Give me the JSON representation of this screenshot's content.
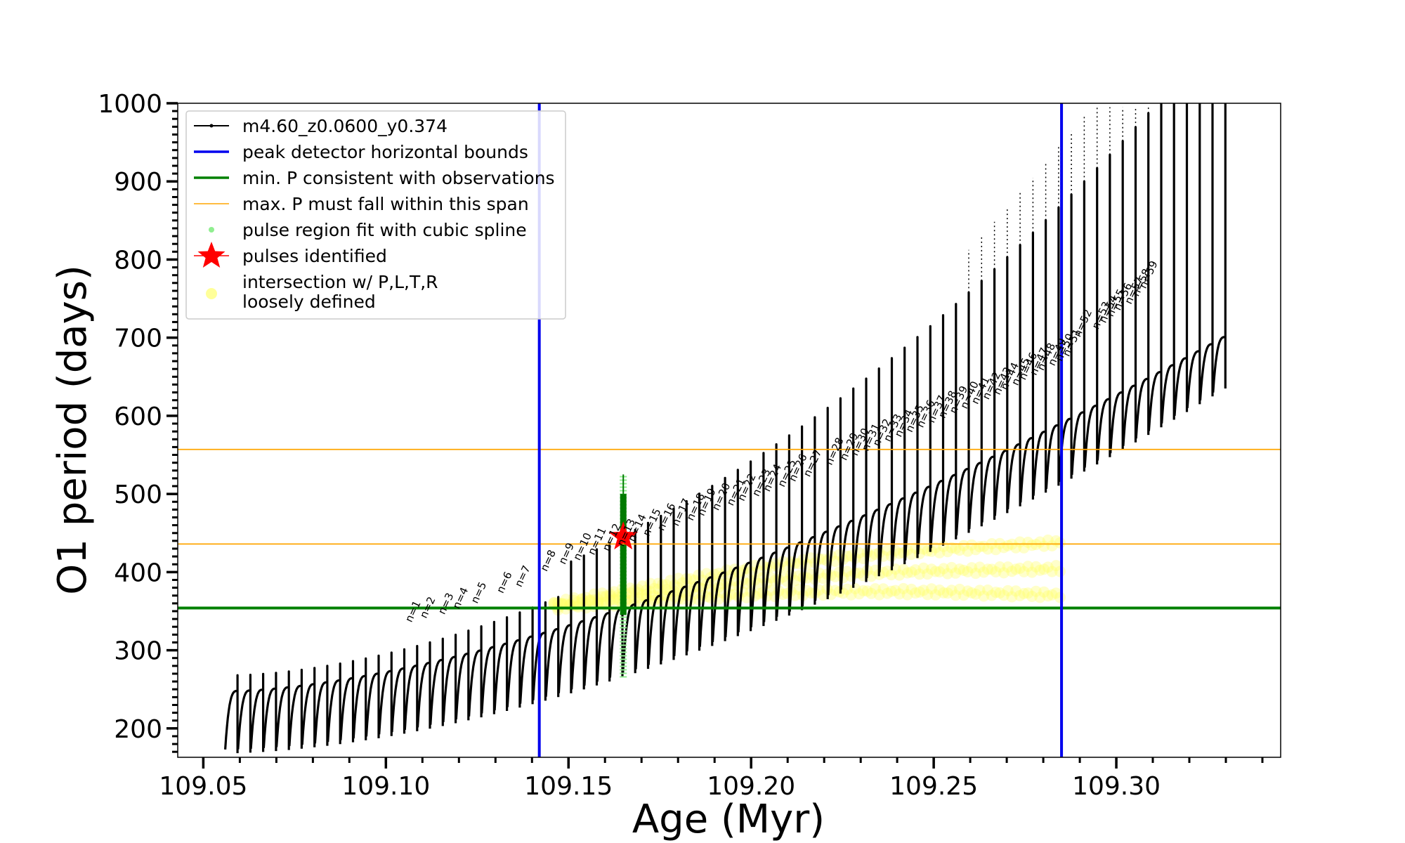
{
  "chart_data": {
    "type": "scatter",
    "title": "",
    "xlabel": "Age (Myr)",
    "ylabel": "O1 period (days)",
    "xlim": [
      109.043,
      109.345
    ],
    "ylim": [
      163,
      1000
    ],
    "x_ticks": [
      "109.05",
      "109.10",
      "109.15",
      "109.20",
      "109.25",
      "109.30"
    ],
    "x_tick_values": [
      109.05,
      109.1,
      109.15,
      109.2,
      109.25,
      109.3
    ],
    "y_ticks": [
      "200",
      "300",
      "400",
      "500",
      "600",
      "700",
      "800",
      "900",
      "1000"
    ],
    "y_tick_values": [
      200,
      300,
      400,
      500,
      600,
      700,
      800,
      900,
      1000
    ],
    "grid": false,
    "legend_position": "upper-left",
    "legend": [
      {
        "label": "m4.60_z0.0600_y0.374",
        "kind": "line-marker",
        "color": "#000000"
      },
      {
        "label": "peak detector horizontal bounds",
        "kind": "line",
        "color": "#0000ee"
      },
      {
        "label": "min. P consistent with observations",
        "kind": "line",
        "color": "#008000"
      },
      {
        "label": "max. P must fall within this span",
        "kind": "thin-line",
        "color": "#ffa500"
      },
      {
        "label": "pulse region fit with cubic spline",
        "kind": "dot",
        "color": "#90ee90"
      },
      {
        "label": "pulses identified",
        "kind": "star",
        "color": "#ff0000"
      },
      {
        "label": "intersection w/ P,L,T,R",
        "label2": "loosely defined",
        "kind": "circle",
        "color": "#ffff99"
      }
    ],
    "series": [
      {
        "name": "m4.60_z0.0600_y0.374",
        "description_values": "period vs age; sawtooth thermal pulse cycles",
        "x_start": 109.056,
        "x_end": 109.33,
        "pulse_count": 78,
        "lower_envelope_start": 173,
        "lower_envelope_end": 640,
        "upper_envelope_start": 248,
        "upper_envelope_end": 710
      }
    ],
    "vertical_lines": [
      {
        "x": 109.142,
        "color": "#0000ee",
        "label": "peak detector horizontal bounds"
      },
      {
        "x": 109.285,
        "color": "#0000ee",
        "label": "peak detector horizontal bounds"
      }
    ],
    "horizontal_lines": [
      {
        "y": 354,
        "color": "#008000",
        "label": "min. P consistent with observations"
      },
      {
        "y": 436,
        "color": "#ffa500",
        "label": "max. P must fall within this span"
      },
      {
        "y": 557,
        "color": "#ffa500",
        "label": "max. P must fall within this span"
      }
    ],
    "pulses_identified": [
      {
        "x": 109.165,
        "y": 445
      }
    ],
    "spline_region": {
      "x": 109.165,
      "y_min": 265,
      "y_max": 525
    },
    "pulse_labels": [
      {
        "text": "n=1",
        "x": 109.107,
        "y": 335
      },
      {
        "text": "n=2",
        "x": 109.111,
        "y": 340
      },
      {
        "text": "n=3",
        "x": 109.116,
        "y": 345
      },
      {
        "text": "n=4",
        "x": 109.12,
        "y": 352
      },
      {
        "text": "n=5",
        "x": 109.125,
        "y": 359
      },
      {
        "text": "n=6",
        "x": 109.132,
        "y": 372
      },
      {
        "text": "n=7",
        "x": 109.137,
        "y": 380
      },
      {
        "text": "n=8",
        "x": 109.144,
        "y": 400
      },
      {
        "text": "n=9",
        "x": 109.149,
        "y": 409
      },
      {
        "text": "n=10",
        "x": 109.153,
        "y": 414
      },
      {
        "text": "n=11",
        "x": 109.157,
        "y": 421
      },
      {
        "text": "n=12",
        "x": 109.161,
        "y": 426
      },
      {
        "text": "n=13",
        "x": 109.165,
        "y": 432
      },
      {
        "text": "n=14",
        "x": 109.168,
        "y": 438
      },
      {
        "text": "n=15",
        "x": 109.172,
        "y": 445
      },
      {
        "text": "n=16",
        "x": 109.176,
        "y": 452
      },
      {
        "text": "n=17",
        "x": 109.18,
        "y": 458
      },
      {
        "text": "n=18",
        "x": 109.184,
        "y": 465
      },
      {
        "text": "n=19",
        "x": 109.187,
        "y": 471
      },
      {
        "text": "n=20",
        "x": 109.191,
        "y": 478
      },
      {
        "text": "n=21",
        "x": 109.195,
        "y": 484
      },
      {
        "text": "n=22",
        "x": 109.198,
        "y": 490
      },
      {
        "text": "n=23",
        "x": 109.202,
        "y": 496
      },
      {
        "text": "n=24",
        "x": 109.205,
        "y": 502
      },
      {
        "text": "n=25",
        "x": 109.209,
        "y": 508
      },
      {
        "text": "n=26",
        "x": 109.212,
        "y": 515
      },
      {
        "text": "n=27",
        "x": 109.216,
        "y": 521
      },
      {
        "text": "n=28",
        "x": 109.222,
        "y": 536
      },
      {
        "text": "n=29",
        "x": 109.226,
        "y": 542
      },
      {
        "text": "n=30",
        "x": 109.229,
        "y": 548
      },
      {
        "text": "n=31",
        "x": 109.232,
        "y": 554
      },
      {
        "text": "n=32",
        "x": 109.235,
        "y": 560
      },
      {
        "text": "n=33",
        "x": 109.238,
        "y": 566
      },
      {
        "text": "n=34",
        "x": 109.241,
        "y": 572
      },
      {
        "text": "n=35",
        "x": 109.244,
        "y": 578
      },
      {
        "text": "n=36",
        "x": 109.247,
        "y": 584
      },
      {
        "text": "n=37",
        "x": 109.25,
        "y": 590
      },
      {
        "text": "n=38",
        "x": 109.253,
        "y": 596
      },
      {
        "text": "n=39",
        "x": 109.256,
        "y": 602
      },
      {
        "text": "n=40",
        "x": 109.259,
        "y": 608
      },
      {
        "text": "n=41",
        "x": 109.262,
        "y": 614
      },
      {
        "text": "n=42",
        "x": 109.265,
        "y": 620
      },
      {
        "text": "n=43",
        "x": 109.268,
        "y": 626
      },
      {
        "text": "n=44",
        "x": 109.27,
        "y": 632
      },
      {
        "text": "n=45",
        "x": 109.273,
        "y": 638
      },
      {
        "text": "n=46",
        "x": 109.275,
        "y": 645
      },
      {
        "text": "n=47",
        "x": 109.278,
        "y": 651
      },
      {
        "text": "n=48",
        "x": 109.28,
        "y": 657
      },
      {
        "text": "n=49",
        "x": 109.283,
        "y": 663
      },
      {
        "text": "n=50",
        "x": 109.285,
        "y": 669
      },
      {
        "text": "n=51",
        "x": 109.287,
        "y": 675
      },
      {
        "text": "n=52",
        "x": 109.29,
        "y": 700
      },
      {
        "text": "n=53",
        "x": 109.295,
        "y": 710
      },
      {
        "text": "n=54",
        "x": 109.297,
        "y": 718
      },
      {
        "text": "n=55",
        "x": 109.299,
        "y": 726
      },
      {
        "text": "n=56",
        "x": 109.301,
        "y": 734
      },
      {
        "text": "n=57",
        "x": 109.304,
        "y": 742
      },
      {
        "text": "n=58",
        "x": 109.306,
        "y": 752
      },
      {
        "text": "n=59",
        "x": 109.308,
        "y": 762
      }
    ]
  }
}
